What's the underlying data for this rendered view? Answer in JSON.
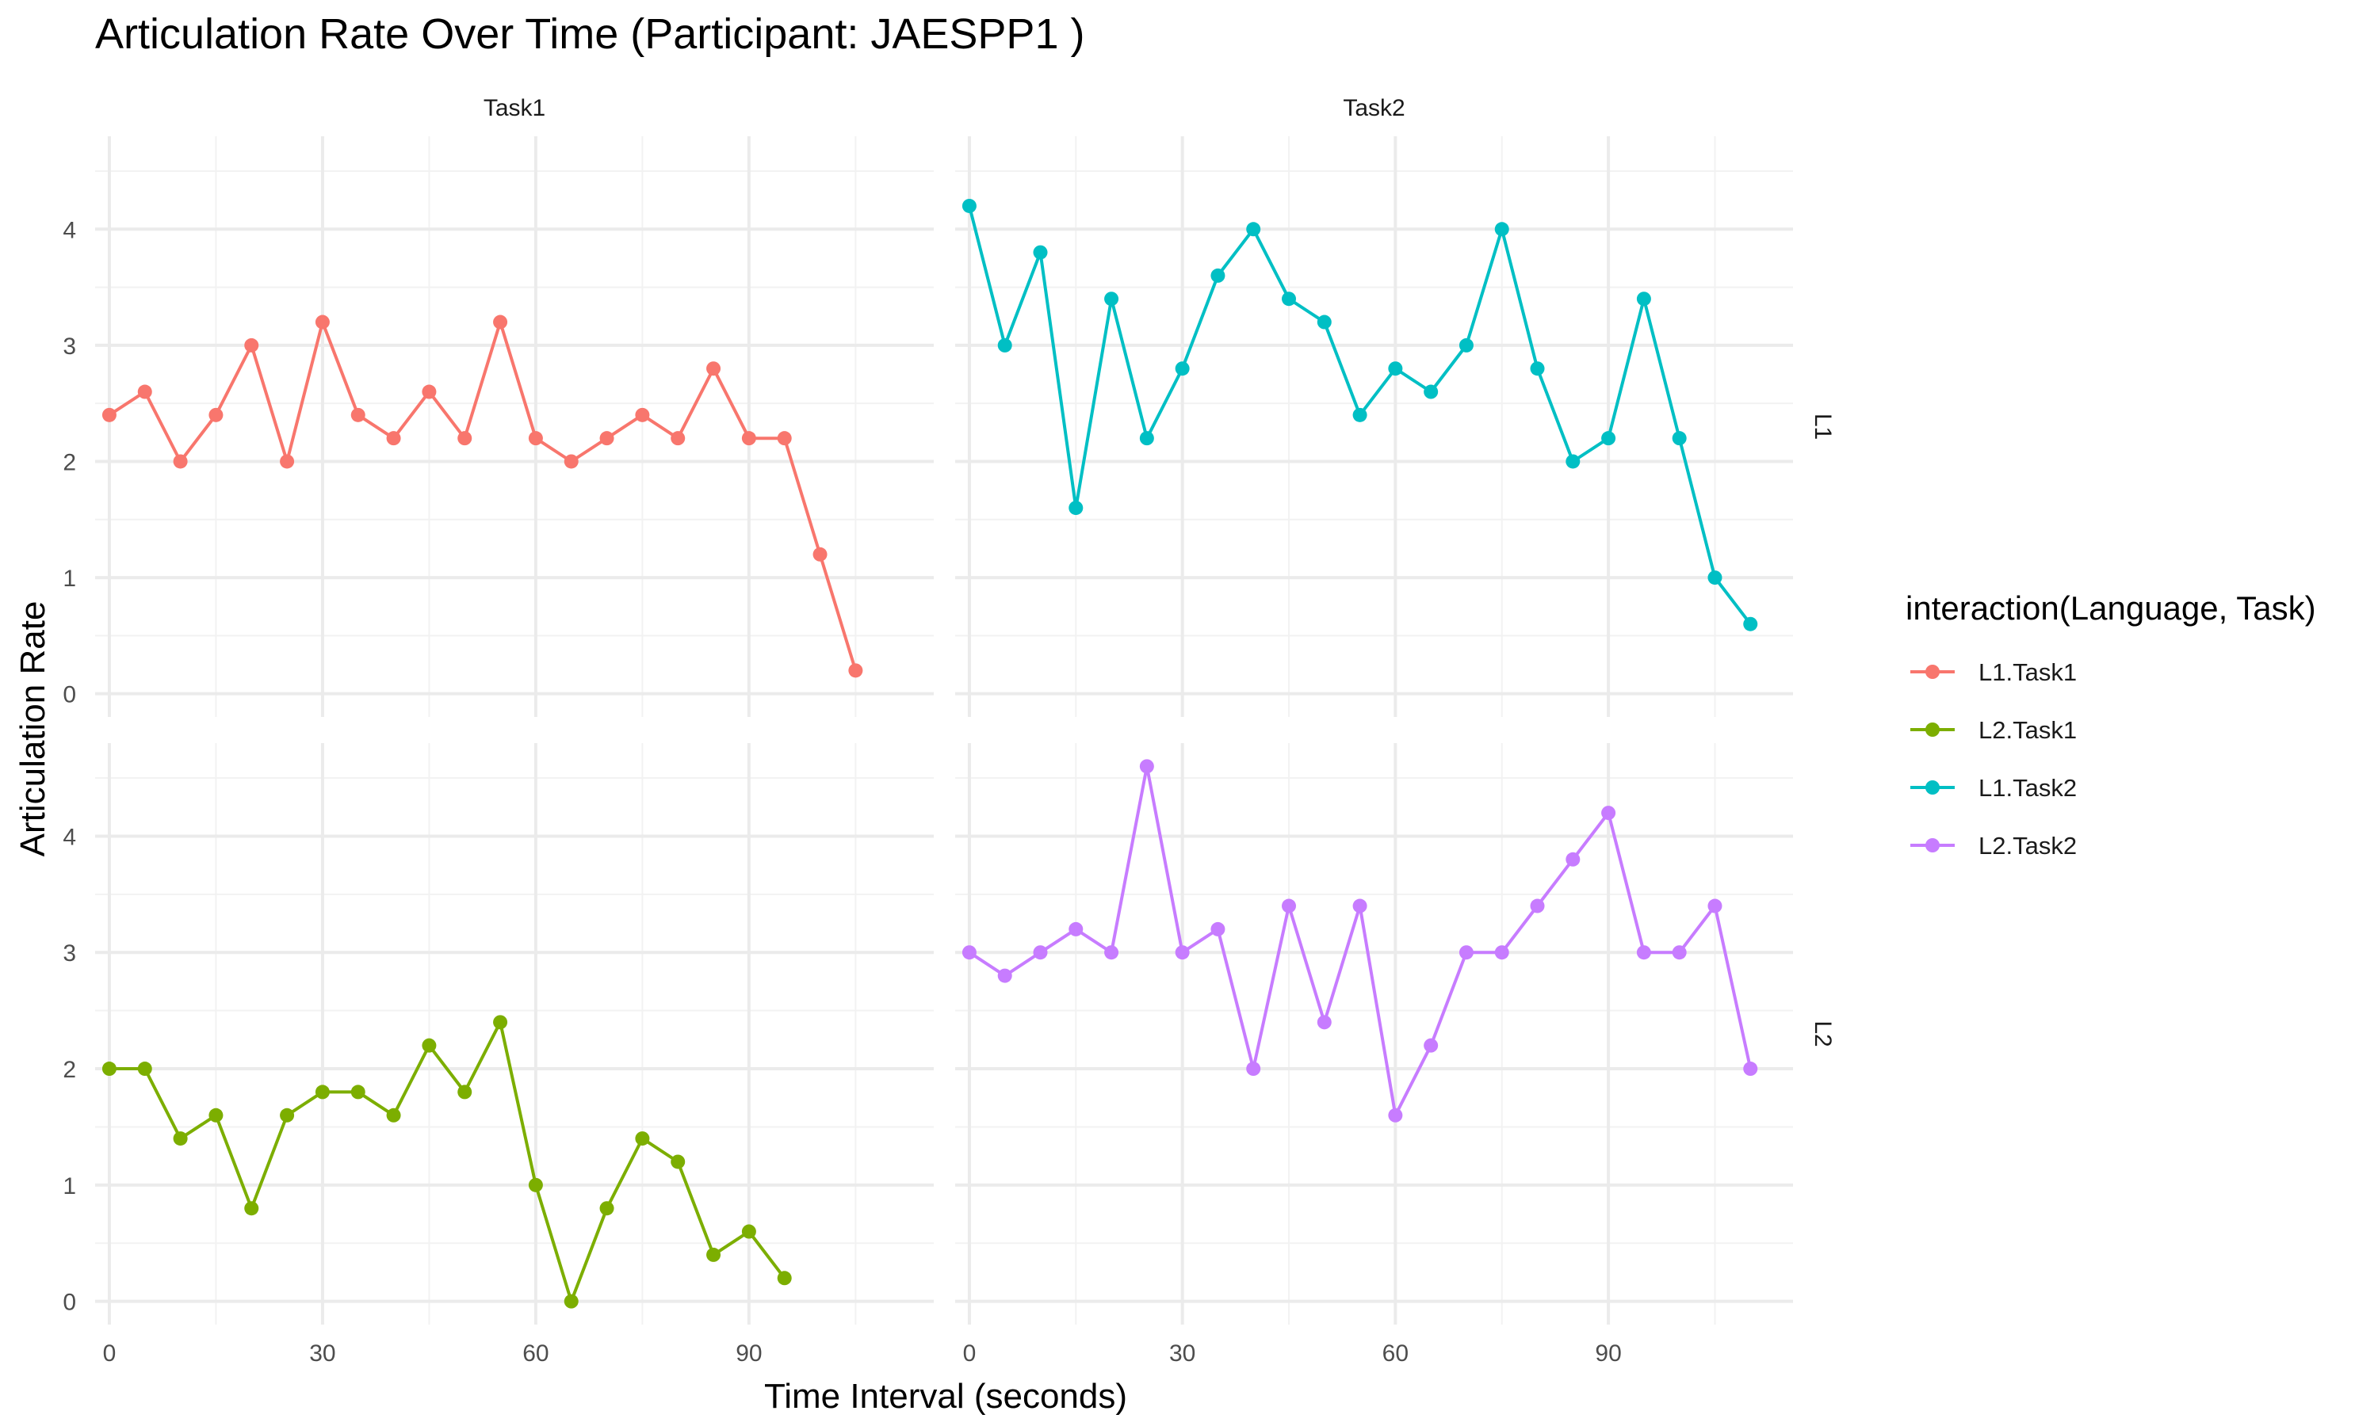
{
  "chart_data": {
    "type": "line",
    "title": "Articulation Rate Over Time (Participant: JAESPP1 )",
    "xlabel": "Time Interval (seconds)",
    "ylabel": "Articulation Rate",
    "legend": {
      "title": "interaction(Language, Task)",
      "position": "right",
      "entries": [
        "L1.Task1",
        "L2.Task1",
        "L1.Task2",
        "L2.Task2"
      ]
    },
    "facet_cols": [
      "Task1",
      "Task2"
    ],
    "facet_rows": [
      "L1",
      "L2"
    ],
    "x_ticks": [
      0,
      30,
      60,
      90
    ],
    "y_ticks": [
      0,
      1,
      2,
      3,
      4
    ],
    "x_range": [
      -2,
      116
    ],
    "y_range": [
      -0.2,
      4.8
    ],
    "grid": true,
    "colors": {
      "L1.Task1": "#F8766D",
      "L2.Task1": "#7CAE00",
      "L1.Task2": "#00BFC4",
      "L2.Task2": "#C77CFF"
    },
    "series": [
      {
        "name": "L1.Task1",
        "row": "L1",
        "col": "Task1",
        "x": [
          0,
          5,
          10,
          15,
          20,
          25,
          30,
          35,
          40,
          45,
          50,
          55,
          60,
          65,
          70,
          75,
          80,
          85,
          90,
          95,
          100,
          105
        ],
        "values": [
          2.4,
          2.6,
          2.0,
          2.4,
          3.0,
          2.0,
          3.2,
          2.4,
          2.2,
          2.6,
          2.2,
          3.2,
          2.2,
          2.0,
          2.2,
          2.4,
          2.2,
          2.8,
          2.2,
          2.2,
          1.2,
          0.2
        ]
      },
      {
        "name": "L1.Task2",
        "row": "L1",
        "col": "Task2",
        "x": [
          0,
          5,
          10,
          15,
          20,
          25,
          30,
          35,
          40,
          45,
          50,
          55,
          60,
          65,
          70,
          75,
          80,
          85,
          90,
          95,
          100,
          105,
          110
        ],
        "values": [
          4.2,
          3.0,
          3.8,
          1.6,
          3.4,
          2.2,
          2.8,
          3.6,
          4.0,
          3.4,
          3.2,
          2.4,
          2.8,
          2.6,
          3.0,
          4.0,
          2.8,
          2.0,
          2.2,
          3.4,
          2.2,
          1.0,
          0.6
        ]
      },
      {
        "name": "L2.Task1",
        "row": "L2",
        "col": "Task1",
        "x": [
          0,
          5,
          10,
          15,
          20,
          25,
          30,
          35,
          40,
          45,
          50,
          55,
          60,
          65,
          70,
          75,
          80,
          85,
          90,
          95
        ],
        "values": [
          2.0,
          2.0,
          1.4,
          1.6,
          0.8,
          1.6,
          1.8,
          1.8,
          1.6,
          2.2,
          1.8,
          2.4,
          1.0,
          0.0,
          0.8,
          1.4,
          1.2,
          0.4,
          0.6,
          0.2
        ]
      },
      {
        "name": "L2.Task2",
        "row": "L2",
        "col": "Task2",
        "x": [
          0,
          5,
          10,
          15,
          20,
          25,
          30,
          35,
          40,
          45,
          50,
          55,
          60,
          65,
          70,
          75,
          80,
          85,
          90,
          95,
          100,
          105,
          110
        ],
        "values": [
          3.0,
          2.8,
          3.0,
          3.2,
          3.0,
          4.6,
          3.0,
          3.2,
          2.0,
          3.4,
          2.4,
          3.4,
          1.6,
          2.2,
          3.0,
          3.0,
          3.4,
          3.8,
          4.2,
          3.0,
          3.0,
          3.4,
          2.0
        ]
      }
    ]
  }
}
